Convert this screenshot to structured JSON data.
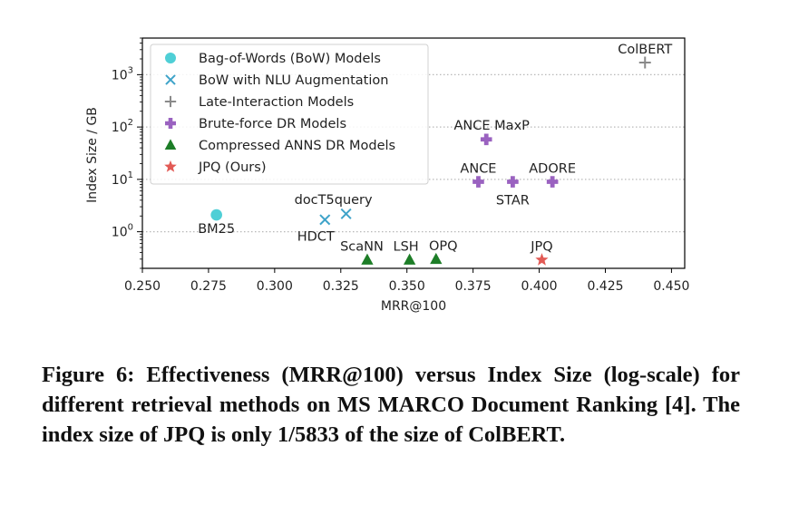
{
  "chart_data": {
    "type": "scatter",
    "xlabel": "MRR@100",
    "ylabel": "Index Size / GB",
    "xlim": [
      0.25,
      0.455
    ],
    "ylim": [
      0.2,
      5000
    ],
    "y_scale": "log",
    "x_ticks": [
      "0.250",
      "0.275",
      "0.300",
      "0.325",
      "0.350",
      "0.375",
      "0.400",
      "0.425",
      "0.450"
    ],
    "y_ticks": [
      {
        "value": 1,
        "base": "10",
        "exp": "0"
      },
      {
        "value": 10,
        "base": "10",
        "exp": "1"
      },
      {
        "value": 100,
        "base": "10",
        "exp": "2"
      },
      {
        "value": 1000,
        "base": "10",
        "exp": "3"
      }
    ],
    "grid": "horizontal dotted at major y ticks",
    "legend_position": "top-left",
    "series": [
      {
        "name": "Bag-of-Words (BoW) Models",
        "marker": "circle",
        "color": "#4fcfd6",
        "points": [
          {
            "label": "BM25",
            "x": 0.278,
            "y": 2.1
          }
        ]
      },
      {
        "name": "BoW with NLU Augmentation",
        "marker": "x",
        "color": "#3ea3c9",
        "points": [
          {
            "label": "HDCT",
            "x": 0.319,
            "y": 1.7
          },
          {
            "label": "docT5query",
            "x": 0.327,
            "y": 2.2
          }
        ]
      },
      {
        "name": "Late-Interaction Models",
        "marker": "plus-thin",
        "color": "#8a8a8a",
        "points": [
          {
            "label": "ColBERT",
            "x": 0.44,
            "y": 1700
          }
        ]
      },
      {
        "name": "Brute-force DR Models",
        "marker": "plus-thick",
        "color": "#9a62c0",
        "points": [
          {
            "label": "ANCE MaxP",
            "x": 0.38,
            "y": 58
          },
          {
            "label": "ANCE",
            "x": 0.377,
            "y": 9
          },
          {
            "label": "STAR",
            "x": 0.39,
            "y": 9
          },
          {
            "label": "ADORE",
            "x": 0.405,
            "y": 9
          }
        ]
      },
      {
        "name": "Compressed ANNS DR Models",
        "marker": "triangle",
        "color": "#1d7d27",
        "points": [
          {
            "label": "ScaNN",
            "x": 0.335,
            "y": 0.29
          },
          {
            "label": "LSH",
            "x": 0.351,
            "y": 0.29
          },
          {
            "label": "OPQ",
            "x": 0.361,
            "y": 0.3
          }
        ]
      },
      {
        "name": "JPQ (Ours)",
        "marker": "star",
        "color": "#e25a55",
        "points": [
          {
            "label": "JPQ",
            "x": 0.401,
            "y": 0.29
          }
        ]
      }
    ]
  },
  "caption": "Figure 6: Effectiveness (MRR@100) versus Index Size (log-scale) for different retrieval methods on MS MARCO Document Ranking [4]. The index size of JPQ is only 1/5833 of the size of ColBERT."
}
